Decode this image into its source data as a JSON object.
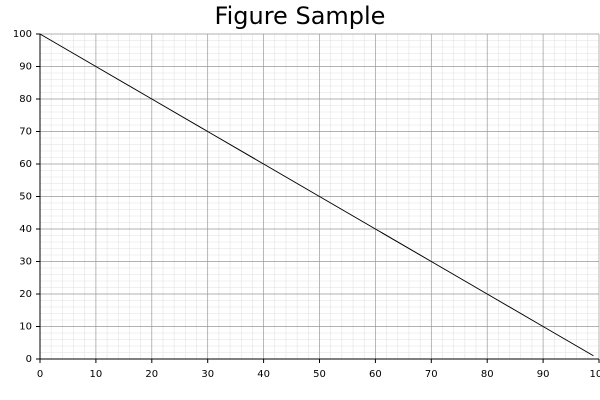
{
  "chart_data": {
    "type": "line",
    "title": "Figure Sample",
    "x": [
      0,
      10,
      20,
      30,
      40,
      50,
      60,
      70,
      80,
      90,
      99
    ],
    "series": [
      {
        "color": "#000000",
        "values": [
          100,
          90,
          80,
          70,
          60,
          50,
          40,
          30,
          20,
          10,
          1
        ]
      }
    ],
    "xlim": [
      0,
      100
    ],
    "ylim": [
      0,
      100
    ],
    "xticks": [
      0,
      10,
      20,
      30,
      40,
      50,
      60,
      70,
      80,
      90,
      100
    ],
    "yticks": [
      0,
      10,
      20,
      30,
      40,
      50,
      60,
      70,
      80,
      90,
      100
    ],
    "grid": true,
    "minor_divisions": 5
  }
}
